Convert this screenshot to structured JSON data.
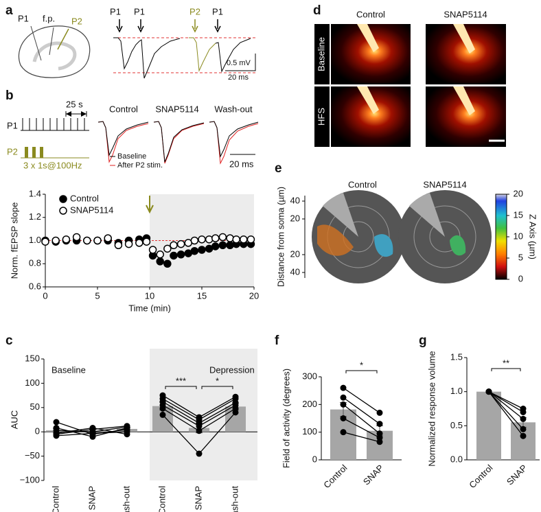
{
  "panel_labels": [
    "a",
    "b",
    "c",
    "d",
    "e",
    "f",
    "g"
  ],
  "a": {
    "sketch_labels": [
      "P1",
      "f.p.",
      "P2"
    ],
    "trace_labels": [
      "P1",
      "P1",
      "P2",
      "P1"
    ],
    "scale_labels": [
      "0.5 mV",
      "20 ms"
    ]
  },
  "b": {
    "interval_label": "25 s",
    "stim_labels": [
      "P1",
      "P2"
    ],
    "train_label": "3 x 1s@100Hz",
    "trace_titles": [
      "Control",
      "SNAP5114",
      "Wash-out"
    ],
    "trace_legend": [
      "Baseline",
      "After P2 stim."
    ],
    "scale_label": "20 ms"
  },
  "d": {
    "columns": [
      "Control",
      "SNAP5114"
    ],
    "rows": [
      "Baseline",
      "HFS"
    ]
  },
  "e": {
    "columns": [
      "Control",
      "SNAP5114"
    ],
    "distance_label": "Distance from soma (µm)",
    "distance_ticks": [
      40,
      20,
      20,
      40
    ],
    "colorbar_label": "Z Axis (µm)",
    "colorbar_lim": [
      0,
      20
    ],
    "colorbar_ticks": [
      0,
      5,
      10,
      15,
      20
    ]
  },
  "chart_data": [
    {
      "type": "scatter",
      "xlabel": "Time (min)",
      "ylabel": "Norm. fEPSP slope",
      "x": [
        0,
        1,
        2,
        3,
        4,
        5,
        6,
        7,
        8,
        9,
        9.7,
        10.3,
        11,
        11.7,
        12.3,
        13,
        13.7,
        14.3,
        15,
        15.7,
        16.3,
        17,
        17.7,
        18.3,
        19,
        19.7
      ],
      "series": [
        {
          "name": "Control",
          "color": "#000000",
          "marker": "filled",
          "values": [
            1.0,
            0.99,
            1.0,
            1.0,
            1.0,
            1.0,
            1.0,
            0.98,
            1.0,
            1.01,
            1.02,
            0.87,
            0.82,
            0.8,
            0.87,
            0.88,
            0.89,
            0.91,
            0.92,
            0.93,
            0.95,
            0.96,
            0.96,
            0.97,
            0.97,
            0.97
          ]
        },
        {
          "name": "SNAP5114",
          "color": "#000000",
          "marker": "open",
          "values": [
            0.99,
            1.0,
            1.01,
            1.03,
            1.0,
            1.0,
            1.02,
            0.96,
            0.97,
            0.98,
            0.99,
            0.92,
            0.88,
            0.93,
            0.96,
            0.97,
            0.98,
            1.0,
            1.01,
            1.01,
            1.02,
            1.03,
            1.02,
            1.01,
            1.01,
            1.01
          ]
        }
      ],
      "xlim": [
        0,
        20
      ],
      "xticks": [
        0,
        5,
        10,
        15,
        20
      ],
      "ylim": [
        0.6,
        1.4
      ],
      "yticks": [
        0.6,
        0.8,
        {
          "value": 1,
          "label": "1.0"
        },
        1.2,
        1.4
      ],
      "reference_line": {
        "value": 1,
        "color": "#e03030"
      },
      "shaded_xrange": [
        10,
        20
      ],
      "arrow_x": 10,
      "arrow_color": "#8a8a1e"
    },
    {
      "type": "bar",
      "ylabel": "AUC",
      "color": "#a6a6a6",
      "ylim": [
        -100,
        150
      ],
      "yticks": [
        {
          "value": -100,
          "label": "−100"
        },
        {
          "value": -50,
          "label": "−50"
        },
        0,
        50,
        100,
        150
      ],
      "groups": [
        {
          "name": "Baseline",
          "shaded": false,
          "categories": [
            "Control",
            "SNAP",
            "Wash-out"
          ],
          "values": [
            3,
            2,
            6
          ],
          "errors": [
            4,
            3,
            3
          ],
          "points": [
            [
              20,
              -5,
              5
            ],
            [
              -5,
              5,
              12
            ],
            [
              -8,
              -3,
              0
            ],
            [
              3,
              0,
              10
            ],
            [
              -3,
              8,
              -5
            ],
            [
              8,
              -10,
              8
            ]
          ],
          "significance": []
        },
        {
          "name": "Depression",
          "shaded": true,
          "categories": [
            "Control",
            "SNAP",
            "Wash-out"
          ],
          "values": [
            53,
            8,
            52
          ],
          "errors": [
            8,
            10,
            7
          ],
          "points": [
            [
              75,
              30,
              72
            ],
            [
              68,
              25,
              68
            ],
            [
              62,
              18,
              60
            ],
            [
              55,
              12,
              55
            ],
            [
              48,
              2,
              48
            ],
            [
              35,
              -45,
              40
            ]
          ],
          "significance": [
            {
              "label": "***",
              "between": [
                0,
                1
              ]
            },
            {
              "label": "*",
              "between": [
                1,
                2
              ]
            }
          ]
        }
      ]
    },
    {
      "type": "bar",
      "ylabel": "Field of activity (degrees)",
      "color": "#a6a6a6",
      "ylim": [
        0,
        300
      ],
      "yticks": [
        0,
        100,
        200,
        300
      ],
      "groups": [
        {
          "categories": [
            "Control",
            "SNAP"
          ],
          "values": [
            182,
            105
          ],
          "errors": [
            25,
            18
          ],
          "points": [
            [
              260,
              170
            ],
            [
              225,
              130
            ],
            [
              200,
              95
            ],
            [
              150,
              80
            ],
            [
              100,
              65
            ]
          ],
          "significance": [
            {
              "label": "*",
              "between": [
                0,
                1
              ]
            }
          ]
        }
      ]
    },
    {
      "type": "bar",
      "ylabel": "Normalized response volume",
      "color": "#a6a6a6",
      "ylim": [
        0,
        1.5
      ],
      "yticks": [
        {
          "value": 0,
          "label": "0.0"
        },
        0.5,
        {
          "value": 1,
          "label": "1.0"
        },
        1.5
      ],
      "groups": [
        {
          "categories": [
            "Control",
            "SNAP"
          ],
          "values": [
            1,
            0.55
          ],
          "errors": [
            null,
            0.07
          ],
          "points": [
            [
              1,
              0.75
            ],
            [
              1,
              0.7
            ],
            [
              1,
              0.6
            ],
            [
              1,
              0.45
            ],
            [
              1,
              0.35
            ]
          ],
          "significance": [
            {
              "label": "**",
              "between": [
                0,
                1
              ]
            }
          ]
        }
      ]
    }
  ]
}
